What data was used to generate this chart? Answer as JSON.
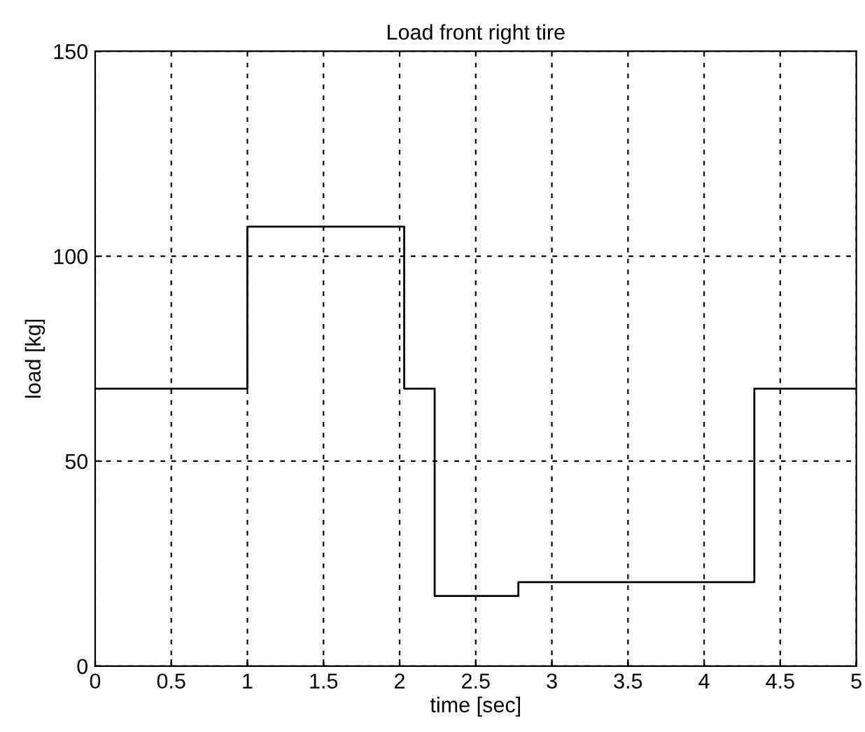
{
  "chart_data": {
    "type": "step",
    "title": "Load front right tire",
    "xlabel": "time [sec]",
    "ylabel": "load [kg]",
    "x": [
      0,
      1,
      2.03,
      2.23,
      2.78,
      4.33,
      5
    ],
    "series": [
      {
        "color": "#000000",
        "values": [
          67.7,
          107.2,
          67.7,
          17.1,
          20.5,
          67.7,
          67.7
        ]
      }
    ],
    "xlim": [
      0,
      5
    ],
    "xticks": [
      0,
      0.5,
      1,
      1.5,
      2,
      2.5,
      3,
      3.5,
      4,
      4.5,
      5
    ],
    "ylim": [
      0,
      150
    ],
    "yticks": [
      0,
      50,
      100,
      150
    ],
    "grid": true,
    "line_style": "solid"
  }
}
